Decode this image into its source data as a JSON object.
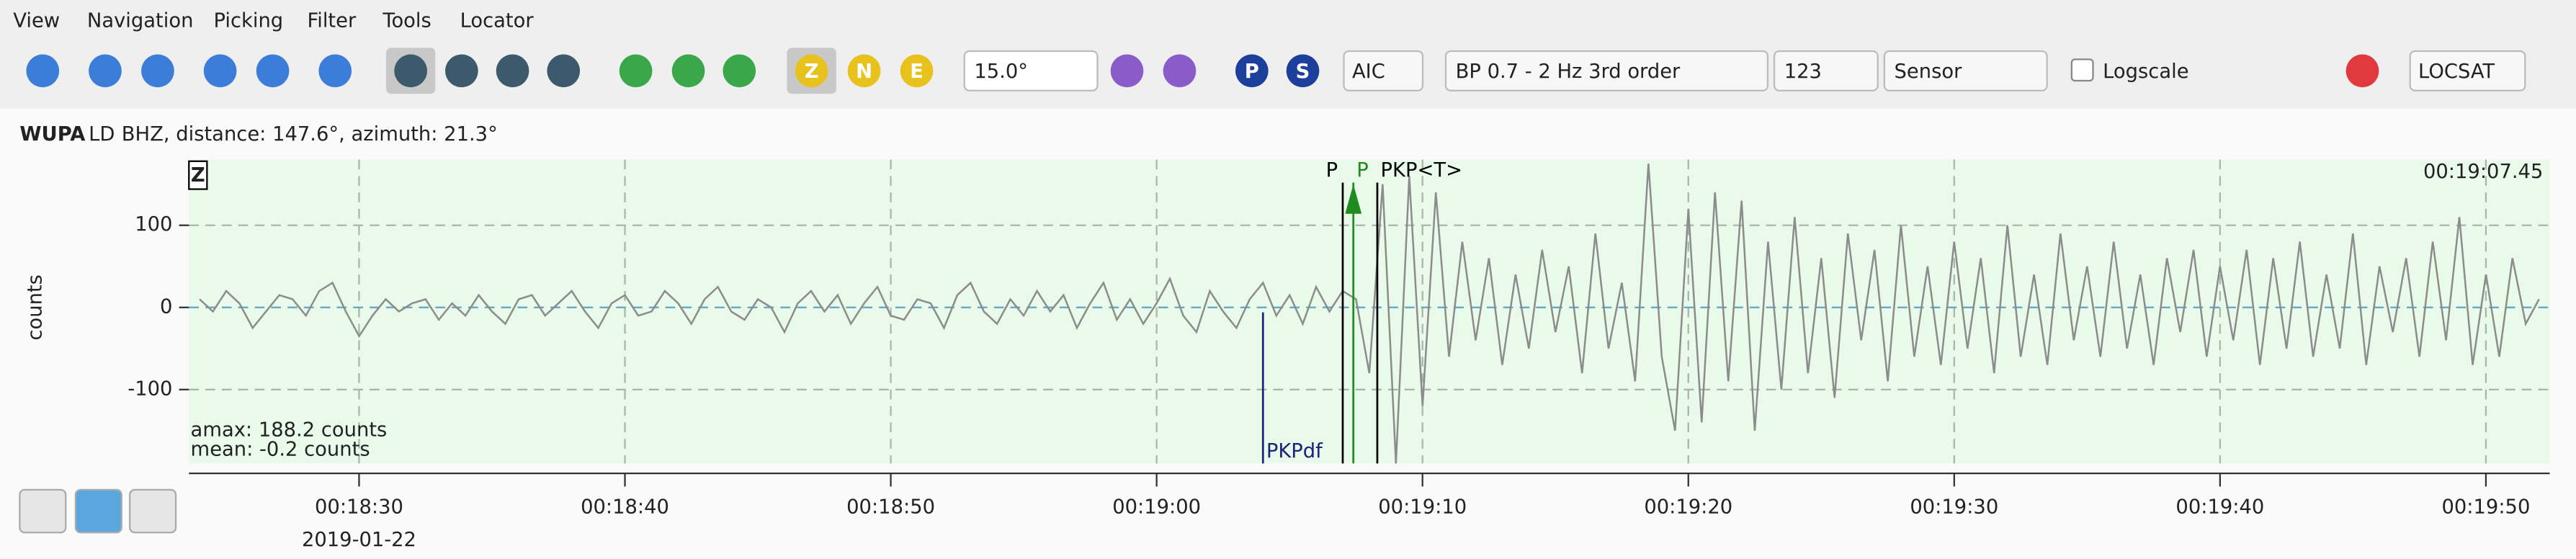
{
  "menu": [
    "View",
    "Navigation",
    "Picking",
    "Filter",
    "Tools",
    "Locator"
  ],
  "toolbar": {
    "angle": "15.0°",
    "method": "AIC",
    "filter": "BP 0.7 - 2 Hz  3rd order",
    "filter_id": "123",
    "unit": "Sensor",
    "logscale": "Logscale",
    "locator": "LOCSAT",
    "components": [
      "Z",
      "N",
      "E"
    ],
    "phases": [
      "P",
      "S"
    ]
  },
  "trace": {
    "station": "WUPA",
    "network": "LD",
    "info": "BHZ, distance: 147.6°, azimuth: 21.3°"
  },
  "chart_data": {
    "type": "line",
    "component": "Z",
    "ylabel": "counts",
    "time_label": "00:19:07.45",
    "amax": "amax: 188.2 counts",
    "mean": "mean: -0.2 counts",
    "date": "2019-01-22",
    "color": "#8c8c8c",
    "grid": true,
    "xlim": [
      1103.6,
      1192.4
    ],
    "ylim": [
      -190,
      180
    ],
    "yticks": [
      -100,
      0,
      100
    ],
    "xticks": [
      {
        "value": 1110,
        "label": "00:18:30"
      },
      {
        "value": 1120,
        "label": "00:18:40"
      },
      {
        "value": 1130,
        "label": "00:18:50"
      },
      {
        "value": 1140,
        "label": "00:19:00"
      },
      {
        "value": 1150,
        "label": "00:19:10"
      },
      {
        "value": 1160,
        "label": "00:19:20"
      },
      {
        "value": 1170,
        "label": "00:19:30"
      },
      {
        "value": 1180,
        "label": "00:19:40"
      },
      {
        "value": 1190,
        "label": "00:19:50"
      }
    ],
    "picks": [
      {
        "label": "PKPdf",
        "x": 1144.0,
        "color": "#1a237e"
      },
      {
        "label": "P",
        "x": 1147.0,
        "color": "#000000"
      },
      {
        "label": "P",
        "x": 1147.4,
        "color": "#1e8c1e"
      },
      {
        "label": "PKP<T>",
        "x": 1148.3,
        "color": "#000000"
      }
    ],
    "x": [
      1104,
      1104.5,
      1105,
      1105.5,
      1106,
      1106.5,
      1107,
      1107.5,
      1108,
      1108.5,
      1109,
      1109.5,
      1110,
      1110.5,
      1111,
      1111.5,
      1112,
      1112.5,
      1113,
      1113.5,
      1114,
      1114.5,
      1115,
      1115.5,
      1116,
      1116.5,
      1117,
      1117.5,
      1118,
      1118.5,
      1119,
      1119.5,
      1120,
      1120.5,
      1121,
      1121.5,
      1122,
      1122.5,
      1123,
      1123.5,
      1124,
      1124.5,
      1125,
      1125.5,
      1126,
      1126.5,
      1127,
      1127.5,
      1128,
      1128.5,
      1129,
      1129.5,
      1130,
      1130.5,
      1131,
      1131.5,
      1132,
      1132.5,
      1133,
      1133.5,
      1134,
      1134.5,
      1135,
      1135.5,
      1136,
      1136.5,
      1137,
      1137.5,
      1138,
      1138.5,
      1139,
      1139.5,
      1140,
      1140.5,
      1141,
      1141.5,
      1142,
      1142.5,
      1143,
      1143.5,
      1144,
      1144.5,
      1145,
      1145.5,
      1146,
      1146.5,
      1147,
      1147.5,
      1148,
      1148.5,
      1149,
      1149.5,
      1150,
      1150.5,
      1151,
      1151.5,
      1152,
      1152.5,
      1153,
      1153.5,
      1154,
      1154.5,
      1155,
      1155.5,
      1156,
      1156.5,
      1157,
      1157.5,
      1158,
      1158.5,
      1159,
      1159.5,
      1160,
      1160.5,
      1161,
      1161.5,
      1162,
      1162.5,
      1163,
      1163.5,
      1164,
      1164.5,
      1165,
      1165.5,
      1166,
      1166.5,
      1167,
      1167.5,
      1168,
      1168.5,
      1169,
      1169.5,
      1170,
      1170.5,
      1171,
      1171.5,
      1172,
      1172.5,
      1173,
      1173.5,
      1174,
      1174.5,
      1175,
      1175.5,
      1176,
      1176.5,
      1177,
      1177.5,
      1178,
      1178.5,
      1179,
      1179.5,
      1180,
      1180.5,
      1181,
      1181.5,
      1182,
      1182.5,
      1183,
      1183.5,
      1184,
      1184.5,
      1185,
      1185.5,
      1186,
      1186.5,
      1187,
      1187.5,
      1188,
      1188.5,
      1189,
      1189.5,
      1190,
      1190.5,
      1191,
      1191.5,
      1192
    ],
    "values": [
      10,
      -5,
      20,
      5,
      -25,
      -5,
      15,
      10,
      -10,
      20,
      30,
      -5,
      -35,
      -10,
      10,
      -5,
      5,
      10,
      -15,
      5,
      -10,
      15,
      -5,
      -20,
      10,
      15,
      -10,
      5,
      20,
      -5,
      -25,
      5,
      15,
      -10,
      -5,
      20,
      5,
      -20,
      10,
      25,
      -5,
      -15,
      10,
      0,
      -30,
      5,
      20,
      -5,
      15,
      -20,
      5,
      25,
      -10,
      -15,
      10,
      5,
      -25,
      15,
      30,
      -5,
      -20,
      10,
      -10,
      20,
      -5,
      15,
      -25,
      5,
      30,
      -15,
      10,
      -20,
      5,
      35,
      -10,
      -30,
      20,
      -5,
      -25,
      10,
      30,
      -10,
      15,
      -20,
      25,
      -5,
      20,
      10,
      -80,
      150,
      -190,
      160,
      -120,
      140,
      -60,
      80,
      -40,
      60,
      -70,
      40,
      -50,
      70,
      -30,
      50,
      -80,
      90,
      -50,
      30,
      -90,
      175,
      -60,
      -150,
      120,
      -140,
      140,
      -90,
      130,
      -150,
      80,
      -100,
      110,
      -80,
      60,
      -110,
      90,
      -40,
      70,
      -90,
      100,
      -60,
      50,
      -70,
      80,
      -50,
      60,
      -80,
      100,
      -60,
      40,
      -70,
      90,
      -40,
      50,
      -60,
      80,
      -50,
      40,
      -70,
      60,
      -30,
      70,
      -60,
      50,
      -40,
      70,
      -70,
      60,
      -50,
      80,
      -60,
      40,
      -50,
      90,
      -70,
      50,
      -30,
      60,
      -60,
      80,
      -40,
      110,
      -70,
      40,
      -60,
      60,
      -20,
      10
    ]
  }
}
